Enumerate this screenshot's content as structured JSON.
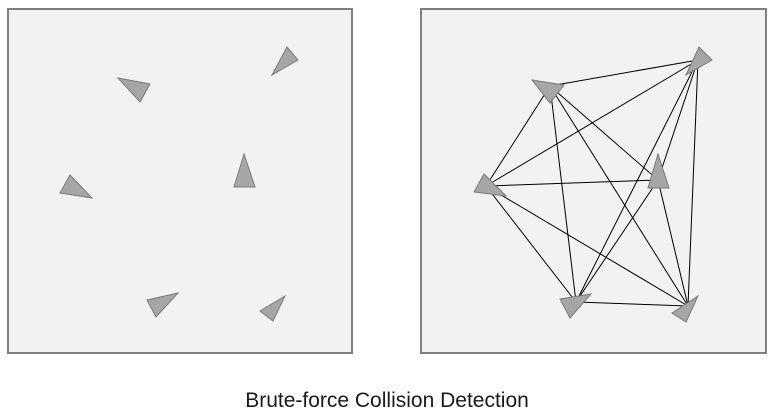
{
  "caption": "Brute-force Collision Detection",
  "panels": [
    {
      "name": "objects-panel",
      "show_pair_lines": false
    },
    {
      "name": "pair-checks-panel",
      "show_pair_lines": true
    }
  ],
  "colors": {
    "panel_fill": "#f2f2f2",
    "panel_border": "#7f7f7f",
    "object_fill": "#a6a6a6",
    "object_border": "#7a7a7a",
    "pair_line": "#000000"
  }
}
